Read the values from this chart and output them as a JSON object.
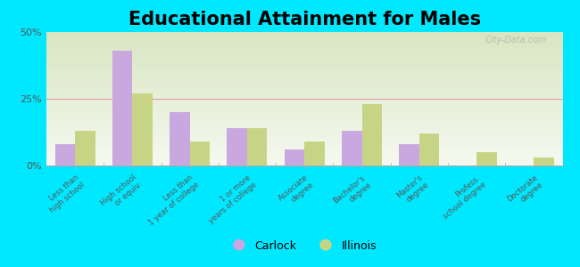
{
  "title": "Educational Attainment for Males",
  "categories": [
    "Less than\nhigh school",
    "High school\nor equiv.",
    "Less than\n1 year of college",
    "1 or more\nyears of college",
    "Associate\ndegree",
    "Bachelor's\ndegree",
    "Master's\ndegree",
    "Profess.\nschool degree",
    "Doctorate\ndegree"
  ],
  "carlock": [
    8,
    43,
    20,
    14,
    6,
    13,
    8,
    0,
    0
  ],
  "illinois": [
    13,
    27,
    9,
    14,
    9,
    23,
    12,
    5,
    3
  ],
  "carlock_color": "#c9a8e0",
  "illinois_color": "#c8d485",
  "background_outer": "#00e8ff",
  "ylim": [
    0,
    50
  ],
  "yticks": [
    0,
    25,
    50
  ],
  "ytick_labels": [
    "0%",
    "25%",
    "50%"
  ],
  "bar_width": 0.35,
  "title_fontsize": 15,
  "legend_labels": [
    "Carlock",
    "Illinois"
  ],
  "watermark": "City-Data.com"
}
